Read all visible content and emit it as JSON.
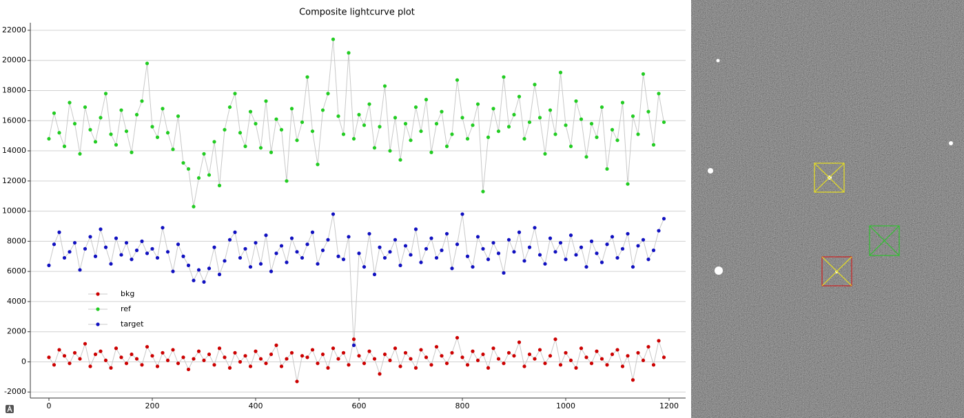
{
  "chart_data": {
    "type": "line",
    "title": "Composite lightcurve plot",
    "x": [
      0,
      10,
      20,
      30,
      40,
      50,
      60,
      70,
      80,
      90,
      100,
      110,
      120,
      130,
      140,
      150,
      160,
      170,
      180,
      190,
      200,
      210,
      220,
      230,
      240,
      250,
      260,
      270,
      280,
      290,
      300,
      310,
      320,
      330,
      340,
      350,
      360,
      370,
      380,
      390,
      400,
      410,
      420,
      430,
      440,
      450,
      460,
      470,
      480,
      490,
      500,
      510,
      520,
      530,
      540,
      550,
      560,
      570,
      580,
      590,
      600,
      610,
      620,
      630,
      640,
      650,
      660,
      670,
      680,
      690,
      700,
      710,
      720,
      730,
      740,
      750,
      760,
      770,
      780,
      790,
      800,
      810,
      820,
      830,
      840,
      850,
      860,
      870,
      880,
      890,
      900,
      910,
      920,
      930,
      940,
      950,
      960,
      970,
      980,
      990,
      1000,
      1010,
      1020,
      1030,
      1040,
      1050,
      1060,
      1070,
      1080,
      1090,
      1100,
      1110,
      1120,
      1130,
      1140,
      1150,
      1160,
      1170,
      1180,
      1190
    ],
    "series": [
      {
        "name": "bkg",
        "color": "#cc0000",
        "values": [
          300,
          -200,
          800,
          400,
          -100,
          600,
          200,
          1200,
          -300,
          500,
          700,
          100,
          -400,
          900,
          300,
          -100,
          500,
          200,
          -200,
          1000,
          400,
          -300,
          600,
          100,
          800,
          -100,
          300,
          -500,
          200,
          700,
          100,
          500,
          -200,
          900,
          300,
          -400,
          600,
          0,
          400,
          -300,
          700,
          200,
          -100,
          500,
          1100,
          -300,
          200,
          600,
          -1300,
          400,
          300,
          800,
          -100,
          500,
          -400,
          900,
          200,
          600,
          -200,
          1500,
          400,
          -100,
          700,
          200,
          -800,
          500,
          100,
          900,
          -300,
          600,
          200,
          -400,
          800,
          300,
          -200,
          1000,
          400,
          -100,
          600,
          1600,
          300,
          -200,
          700,
          100,
          500,
          -400,
          900,
          200,
          -100,
          600,
          400,
          1300,
          -300,
          500,
          200,
          800,
          -100,
          400,
          1500,
          -200,
          600,
          100,
          -400,
          900,
          300,
          -100,
          700,
          200,
          -200,
          500,
          800,
          -300,
          400,
          -1200,
          600,
          100,
          1000,
          -200,
          1400,
          300
        ]
      },
      {
        "name": "ref",
        "color": "#22cc22",
        "values": [
          14800,
          16500,
          15200,
          14300,
          17200,
          15800,
          13800,
          16900,
          15400,
          14600,
          16200,
          17800,
          15100,
          14400,
          16700,
          15300,
          13900,
          16400,
          17300,
          19800,
          15600,
          14900,
          16800,
          15200,
          14100,
          16300,
          13200,
          12800,
          10300,
          12200,
          13800,
          12400,
          14600,
          11700,
          15400,
          16900,
          17800,
          15200,
          14300,
          16600,
          15800,
          14200,
          17300,
          13900,
          16100,
          15400,
          12000,
          16800,
          14700,
          15900,
          18900,
          15300,
          13100,
          16700,
          17800,
          21400,
          16300,
          15100,
          20500,
          14800,
          16400,
          15700,
          17100,
          14200,
          15600,
          18300,
          14000,
          16200,
          13400,
          15800,
          14700,
          16900,
          15300,
          17400,
          13900,
          15800,
          16600,
          14300,
          15100,
          18700,
          16200,
          14800,
          15700,
          17100,
          11300,
          14900,
          16800,
          15300,
          18900,
          15600,
          16400,
          17600,
          14800,
          15900,
          18400,
          16200,
          13800,
          16700,
          15100,
          19200,
          15700,
          14300,
          17300,
          16100,
          13600,
          15800,
          14900,
          16900,
          12800,
          15400,
          14700,
          17200,
          11800,
          16300,
          15100,
          19100,
          16600,
          14400,
          17800,
          15900
        ]
      },
      {
        "name": "target",
        "color": "#1010c0",
        "values": [
          6400,
          7800,
          8600,
          6900,
          7300,
          7900,
          6100,
          7500,
          8300,
          7000,
          8800,
          7600,
          6500,
          8200,
          7100,
          7900,
          6800,
          7400,
          8000,
          7200,
          7500,
          6900,
          8900,
          7300,
          6000,
          7800,
          7000,
          6400,
          5400,
          6100,
          5300,
          6200,
          7600,
          5800,
          6700,
          8100,
          8600,
          6900,
          7500,
          6300,
          7900,
          6500,
          8400,
          6000,
          7200,
          7700,
          6600,
          8200,
          7300,
          6900,
          7800,
          8600,
          6500,
          7400,
          8100,
          9800,
          7000,
          6800,
          8300,
          1100,
          7200,
          6300,
          8500,
          5800,
          7600,
          6900,
          7300,
          8100,
          6400,
          7700,
          7100,
          8800,
          6600,
          7500,
          8200,
          6900,
          7400,
          8500,
          6200,
          7800,
          9800,
          7000,
          6300,
          8300,
          7500,
          6800,
          7900,
          7200,
          5900,
          8100,
          7300,
          8600,
          6700,
          7600,
          8900,
          7100,
          6500,
          8200,
          7300,
          7900,
          6800,
          8400,
          7100,
          7600,
          6300,
          8000,
          7200,
          6600,
          7800,
          8300,
          6900,
          7500,
          8500,
          6300,
          7700,
          8100,
          6800,
          7400,
          8700,
          9500
        ]
      }
    ],
    "xlim": [
      -36,
      1232
    ],
    "ylim": [
      -2400,
      22500
    ],
    "xticks": [
      0,
      200,
      400,
      600,
      800,
      1000,
      1200
    ],
    "yticks": [
      -2000,
      0,
      2000,
      4000,
      6000,
      8000,
      10000,
      12000,
      14000,
      16000,
      18000,
      20000,
      22000
    ],
    "grid": true,
    "line_color": "#c8c8c8"
  }
}
